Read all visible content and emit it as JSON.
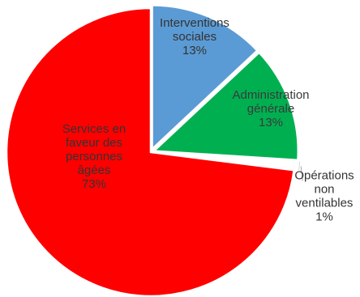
{
  "chart_data": {
    "type": "pie",
    "title": "",
    "slices": [
      {
        "label_lines": [
          "Interventions",
          "sociales",
          "13%"
        ],
        "value": 13,
        "color": "#5b9bd5"
      },
      {
        "label_lines": [
          "Administration",
          "générale",
          "13%"
        ],
        "value": 13,
        "color": "#00b050"
      },
      {
        "label_lines": [
          "Opérations",
          "non",
          "ventilables",
          "1%"
        ],
        "value": 1,
        "color": "#ffffff"
      },
      {
        "label_lines": [
          "Services en",
          "faveur des",
          "personnes",
          "âgées",
          "73%"
        ],
        "value": 73,
        "color": "#ff0000"
      }
    ],
    "legend": "none"
  }
}
